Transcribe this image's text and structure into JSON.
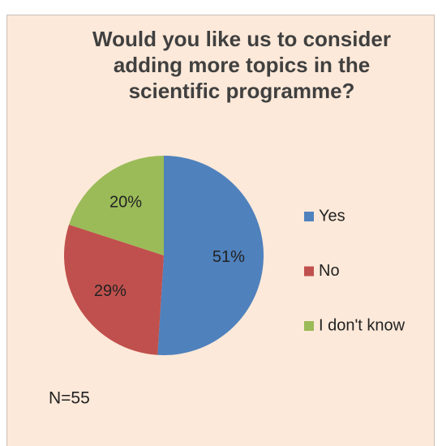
{
  "chart_data": {
    "type": "pie",
    "title": "Would you like us to consider adding more topics in the scientific programme?",
    "categories": [
      "Yes",
      "No",
      "I don't know"
    ],
    "values": [
      51,
      29,
      20
    ],
    "value_labels": [
      "51%",
      "29%",
      "20%"
    ],
    "colors": [
      "#4f81bd",
      "#c0504d",
      "#9bbb59"
    ],
    "legend": "right",
    "annotation": "N=55"
  }
}
